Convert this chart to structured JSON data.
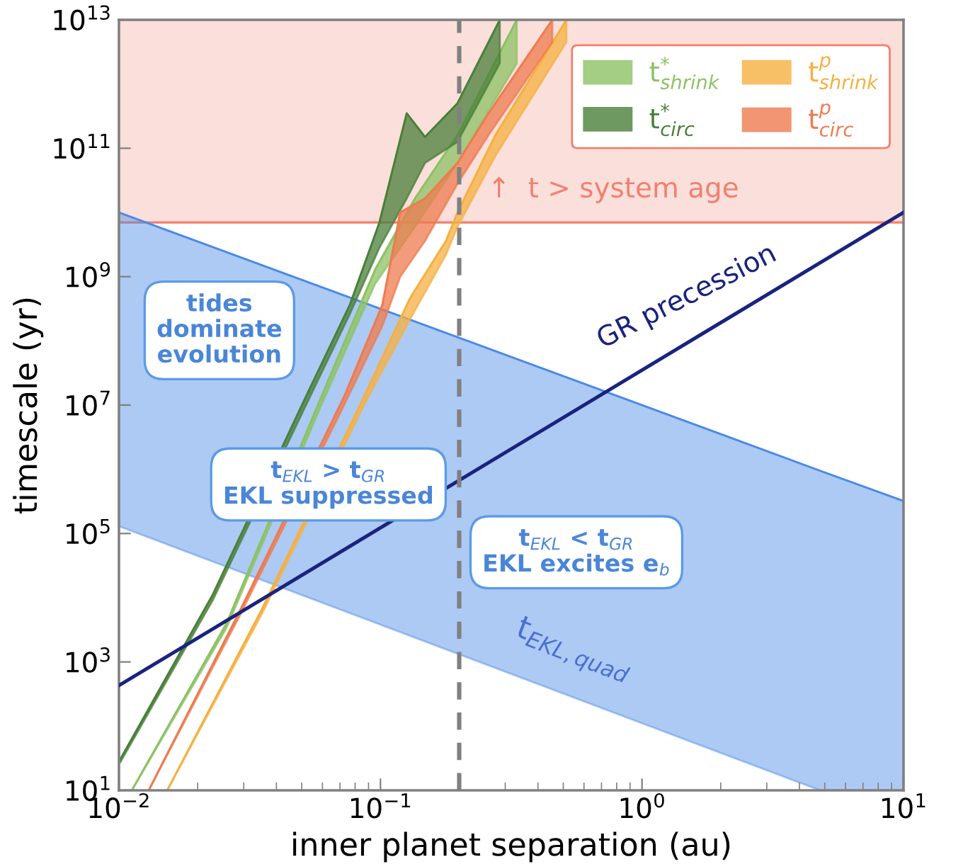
{
  "chart_data": {
    "type": "line",
    "xlabel": "inner planet separation (au)",
    "ylabel": "timescale (yr)",
    "log": "xy",
    "xlim": [
      0.01,
      10
    ],
    "ylim": [
      10,
      10000000000000.0
    ],
    "xticks": [
      {
        "value": 0.01,
        "label": "10$^{−2}$"
      },
      {
        "value": 0.1,
        "label": "10$^{−1}$"
      },
      {
        "value": 1,
        "label": "10$^{0}$"
      },
      {
        "value": 10,
        "label": "10$^{1}$"
      }
    ],
    "yticks": [
      {
        "value": 10,
        "label": "10$^{1}$"
      },
      {
        "value": 1000,
        "label": "10$^{3}$"
      },
      {
        "value": 100000,
        "label": "10$^{5}$"
      },
      {
        "value": 10000000,
        "label": "10$^{7}$"
      },
      {
        "value": 1000000000,
        "label": "10$^{9}$"
      },
      {
        "value": 100000000000,
        "label": "10$^{11}$"
      },
      {
        "value": 10000000000000,
        "label": "10$^{13}$"
      }
    ],
    "grid": false,
    "legend": "top right",
    "bands": [
      {
        "axis": "y",
        "from": 7000000000.0,
        "to": 10000000000000.0,
        "label": "↑  t > system age",
        "color": "#f08070"
      }
    ],
    "ref_lines": [
      {
        "axis": "x",
        "value": 0.2,
        "color": "#808080",
        "line_style": "dashed"
      },
      {
        "axis": "y",
        "value": 7000000000.0,
        "color": "#f08070",
        "line_style": "solid"
      }
    ],
    "series": [
      {
        "color": "#4a8ae6",
        "x": [
          0.01,
          4.8,
          10
        ],
        "values": [
          10000000000.0,
          950000.0,
          320000.0
        ],
        "upper": [
          10000000000.0,
          950000.0,
          320000.0
        ],
        "lower": [
          130000.0,
          10,
          10
        ]
      },
      {
        "color": "#1a237e",
        "x": [
          0.01,
          10
        ],
        "values": [
          430,
          10000000000.0
        ]
      },
      {
        "name": "t$^{*}$$_{shrink}$",
        "color": "#8cc264",
        "x": [
          0.0112,
          0.0258,
          0.0594,
          0.0955,
          0.1355,
          0.197,
          0.332
        ],
        "values": [
          10,
          4000.0,
          13500000.0,
          1300000000.0,
          16500000000.0,
          160000000000.0,
          10000000000000.0
        ],
        "upper": [
          10,
          4000.0,
          13500000.0,
          1300000000.0,
          16500000000.0,
          160000000000.0,
          10000000000000.0
        ],
        "lower": [
          10,
          3400.0,
          10000000.0,
          780000000.0,
          6000000000.0,
          59000000000.0,
          2100000000000.0
        ]
      },
      {
        "name": "t$^{*}$$_{circ}$",
        "color": "#4a7f3a",
        "x": [
          0.0101,
          0.0228,
          0.0525,
          0.0763,
          0.099,
          0.126,
          0.148,
          0.197,
          0.286
        ],
        "values": [
          30,
          11000.0,
          15000000.0,
          360000000.0,
          6900000000.0,
          350000000000.0,
          150000000000.0,
          500000000000.0,
          10000000000000.0
        ],
        "upper": [
          30,
          11000.0,
          15000000.0,
          360000000.0,
          6900000000.0,
          350000000000.0,
          150000000000.0,
          500000000000.0,
          10000000000000.0
        ],
        "lower": [
          27,
          9000.0,
          11000000.0,
          260000000.0,
          2800000000.0,
          16500000000.0,
          59000000000.0,
          126000000000.0,
          2100000000000.0
        ]
      },
      {
        "name": "t$^{p}$$_{shrink}$",
        "color": "#f5b041",
        "x": [
          0.0153,
          0.0352,
          0.0865,
          0.13,
          0.178,
          0.197,
          0.275,
          0.514
        ],
        "values": [
          10,
          6600.0,
          13500000.0,
          470000000.0,
          3600000000.0,
          10000000000.0,
          160000000000.0,
          10000000000000.0
        ],
        "upper": [
          10,
          6600.0,
          13500000.0,
          470000000.0,
          3600000000.0,
          10000000000.0,
          160000000000.0,
          10000000000000.0
        ],
        "lower": [
          10,
          5600.0,
          10000000.0,
          220000000.0,
          2200000000.0,
          6000000000.0,
          76000000000.0,
          4500000000000.0
        ]
      },
      {
        "name": "t$^{p}$$_{circ}$",
        "color": "#ee7b4f",
        "x": [
          0.013,
          0.0292,
          0.0726,
          0.1016,
          0.119,
          0.148,
          0.197,
          0.259,
          0.454
        ],
        "values": [
          10,
          6600.0,
          13500000.0,
          360000000.0,
          10000000000.0,
          16500000000.0,
          59000000000.0,
          350000000000.0,
          10000000000000.0
        ],
        "upper": [
          10,
          6600.0,
          13500000.0,
          360000000.0,
          10000000000.0,
          16500000000.0,
          59000000000.0,
          350000000000.0,
          10000000000000.0
        ],
        "lower": [
          10,
          5600.0,
          10000000.0,
          170000000.0,
          1000000000.0,
          3600000000.0,
          28000000000.0,
          160000000000.0,
          4500000000000.0
        ]
      }
    ],
    "annotations": [
      "tides\ndominate\nevolution",
      "t$_{EKL}$ > t$_{GR}$\nEKL suppressed",
      "t$_{EKL}$ < t$_{GR}$\nEKL excites e$_{b}$",
      "GR precession",
      "t$_{EKL,quad}$"
    ]
  }
}
